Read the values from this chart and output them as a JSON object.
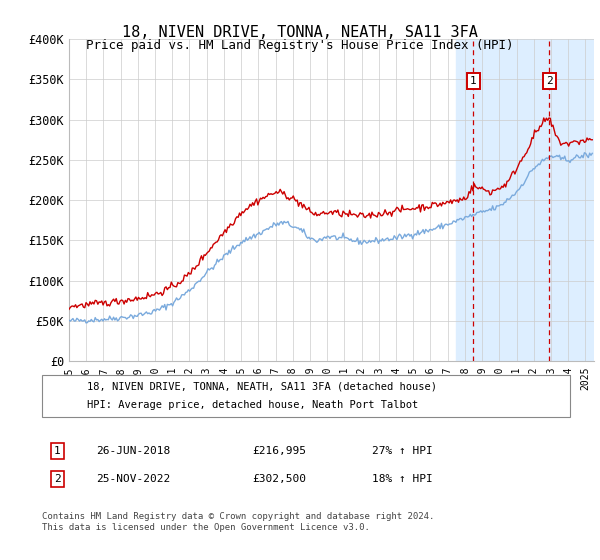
{
  "title": "18, NIVEN DRIVE, TONNA, NEATH, SA11 3FA",
  "subtitle": "Price paid vs. HM Land Registry's House Price Index (HPI)",
  "ylim": [
    0,
    400000
  ],
  "yticks": [
    0,
    50000,
    100000,
    150000,
    200000,
    250000,
    300000,
    350000,
    400000
  ],
  "ytick_labels": [
    "£0",
    "£50K",
    "£100K",
    "£150K",
    "£200K",
    "£250K",
    "£300K",
    "£350K",
    "£400K"
  ],
  "xlim_start": 1995.0,
  "xlim_end": 2025.5,
  "hpi_color": "#7aaadd",
  "price_color": "#cc0000",
  "marker1_date": 2018.49,
  "marker1_price": 216995,
  "marker1_label": "26-JUN-2018",
  "marker1_pct": "27% ↑ HPI",
  "marker2_date": 2022.9,
  "marker2_price": 302500,
  "marker2_label": "25-NOV-2022",
  "marker2_pct": "18% ↑ HPI",
  "legend_line1": "18, NIVEN DRIVE, TONNA, NEATH, SA11 3FA (detached house)",
  "legend_line2": "HPI: Average price, detached house, Neath Port Talbot",
  "footer": "Contains HM Land Registry data © Crown copyright and database right 2024.\nThis data is licensed under the Open Government Licence v3.0.",
  "background_shaded_start": 2017.5,
  "shaded_color": "#ddeeff"
}
